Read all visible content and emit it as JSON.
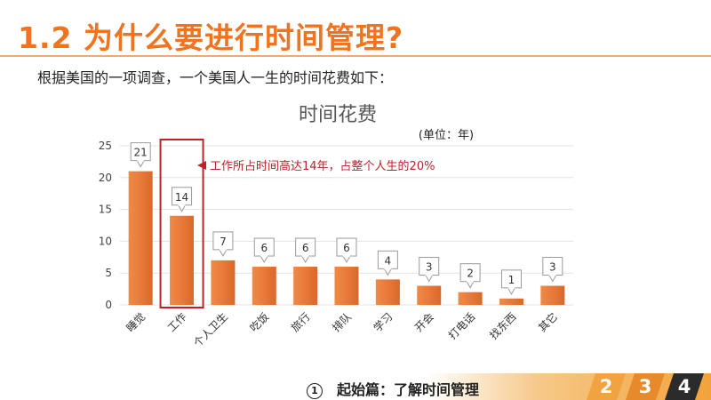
{
  "slide": {
    "title": "1.2  为什么要进行时间管理?",
    "intro": "根据美国的一项调查，一个美国人一生的时间花费如下："
  },
  "chart_data": {
    "type": "bar",
    "title": "时间花费",
    "unit_label": "(单位：年)",
    "categories": [
      "睡觉",
      "工作",
      "个人卫生",
      "吃饭",
      "旅行",
      "排队",
      "学习",
      "开会",
      "打电话",
      "找东西",
      "其它"
    ],
    "values": [
      21,
      14,
      7,
      6,
      6,
      6,
      4,
      3,
      2,
      1,
      3
    ],
    "ylim": [
      0,
      25
    ],
    "yticks": [
      0,
      5,
      10,
      15,
      20,
      25
    ],
    "grid": true,
    "legend": "none",
    "bar_color": "#e8793a",
    "highlight_index": 1,
    "annotation": "工作所占时间高达14年，占整个人生的20%",
    "annotation_color": "#c0202a"
  },
  "footer": {
    "section_number": "①",
    "section_label": "起始篇：了解时间管理",
    "pages": [
      "2",
      "3",
      "4"
    ],
    "band_color": "#f2a23a",
    "tab_colors": [
      "#f0a340",
      "#e68a2c",
      "#2b2b2b"
    ]
  }
}
